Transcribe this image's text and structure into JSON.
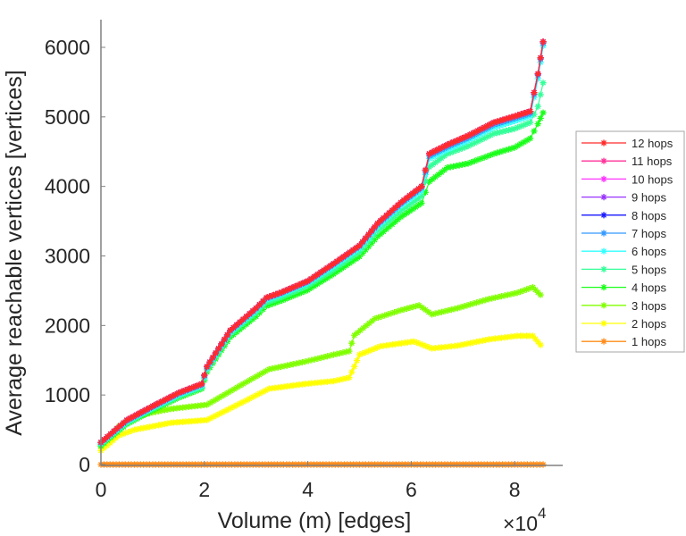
{
  "chart_data": {
    "type": "line",
    "title": "",
    "xlabel": "Volume (m) [edges]",
    "ylabel": "Average reachable vertices [vertices]",
    "x_multiplier_label": "×10",
    "x_multiplier_exponent": "4",
    "x_scale": 10000,
    "xlim": [
      0,
      9
    ],
    "ylim": [
      0,
      6000
    ],
    "xticks": [
      0,
      2,
      4,
      6,
      8
    ],
    "xtick_labels": [
      "0",
      "2",
      "4",
      "6",
      "8"
    ],
    "yticks": [
      0,
      1000,
      2000,
      3000,
      4000,
      5000,
      6000
    ],
    "ytick_labels": [
      "0",
      "1000",
      "2000",
      "3000",
      "4000",
      "5000",
      "6000"
    ],
    "grid": false,
    "legend_position": "outside-right",
    "marker": "asterisk",
    "series": [
      {
        "name": "12 hops",
        "color": "#ff2a2a",
        "x": [
          0,
          0.5,
          1,
          1.5,
          1.95,
          2.05,
          2.5,
          3,
          3.2,
          3.5,
          4,
          4.5,
          5,
          5.35,
          5.8,
          6.2,
          6.35,
          6.7,
          7.1,
          7.6,
          8.0,
          8.3,
          8.45,
          8.55
        ],
        "y": [
          320,
          640,
          840,
          1030,
          1160,
          1410,
          1930,
          2250,
          2400,
          2480,
          2640,
          2890,
          3150,
          3470,
          3770,
          4000,
          4470,
          4600,
          4730,
          4920,
          5010,
          5080,
          5620,
          6080
        ]
      },
      {
        "name": "11 hops",
        "color": "#ff3399",
        "x": [
          0,
          0.5,
          1,
          1.5,
          1.95,
          2.05,
          2.5,
          3,
          3.2,
          3.5,
          4,
          4.5,
          5,
          5.35,
          5.8,
          6.2,
          6.35,
          6.7,
          7.1,
          7.6,
          8.0,
          8.3,
          8.45,
          8.55
        ],
        "y": [
          320,
          640,
          840,
          1030,
          1160,
          1410,
          1930,
          2250,
          2400,
          2480,
          2640,
          2890,
          3150,
          3470,
          3770,
          4000,
          4470,
          4600,
          4730,
          4920,
          5010,
          5080,
          5620,
          6080
        ]
      },
      {
        "name": "10 hops",
        "color": "#ff33ff",
        "x": [
          0,
          0.5,
          1,
          1.5,
          1.95,
          2.05,
          2.5,
          3,
          3.2,
          3.5,
          4,
          4.5,
          5,
          5.35,
          5.8,
          6.2,
          6.35,
          6.7,
          7.1,
          7.6,
          8.0,
          8.3,
          8.45,
          8.55
        ],
        "y": [
          320,
          640,
          840,
          1030,
          1160,
          1410,
          1930,
          2250,
          2400,
          2480,
          2640,
          2890,
          3150,
          3470,
          3770,
          4000,
          4470,
          4600,
          4730,
          4920,
          5010,
          5080,
          5620,
          6080
        ]
      },
      {
        "name": "9 hops",
        "color": "#9933ff",
        "x": [
          0,
          0.5,
          1,
          1.5,
          1.95,
          2.05,
          2.5,
          3,
          3.2,
          3.5,
          4,
          4.5,
          5,
          5.35,
          5.8,
          6.2,
          6.35,
          6.7,
          7.1,
          7.6,
          8.0,
          8.3,
          8.45,
          8.55
        ],
        "y": [
          320,
          640,
          840,
          1030,
          1160,
          1410,
          1930,
          2250,
          2400,
          2480,
          2640,
          2890,
          3150,
          3470,
          3770,
          4000,
          4470,
          4600,
          4730,
          4920,
          5010,
          5080,
          5620,
          6080
        ]
      },
      {
        "name": "8 hops",
        "color": "#1a1aff",
        "x": [
          0,
          0.5,
          1,
          1.5,
          1.95,
          2.05,
          2.5,
          3,
          3.2,
          3.5,
          4,
          4.5,
          5,
          5.35,
          5.8,
          6.2,
          6.35,
          6.7,
          7.1,
          7.6,
          8.0,
          8.3,
          8.45,
          8.55
        ],
        "y": [
          320,
          640,
          840,
          1030,
          1160,
          1410,
          1930,
          2250,
          2400,
          2480,
          2640,
          2890,
          3150,
          3470,
          3770,
          4000,
          4470,
          4600,
          4730,
          4920,
          5010,
          5080,
          5620,
          6080
        ]
      },
      {
        "name": "7 hops",
        "color": "#3399ff",
        "x": [
          0,
          0.5,
          1,
          1.5,
          1.95,
          2.05,
          2.5,
          3,
          3.2,
          3.5,
          4,
          4.5,
          5,
          5.35,
          5.8,
          6.2,
          6.35,
          6.7,
          7.1,
          7.6,
          8.0,
          8.3,
          8.45,
          8.55
        ],
        "y": [
          315,
          630,
          830,
          1020,
          1150,
          1400,
          1920,
          2240,
          2390,
          2470,
          2630,
          2880,
          3140,
          3450,
          3750,
          3980,
          4440,
          4570,
          4700,
          4890,
          4980,
          5050,
          5600,
          6060
        ]
      },
      {
        "name": "6 hops",
        "color": "#33ffff",
        "x": [
          0,
          0.5,
          1,
          1.5,
          1.95,
          2.05,
          2.5,
          3,
          3.2,
          3.5,
          4,
          4.5,
          5,
          5.35,
          5.8,
          6.2,
          6.35,
          6.7,
          7.1,
          7.6,
          8.0,
          8.3,
          8.45,
          8.55
        ],
        "y": [
          305,
          615,
          815,
          1000,
          1130,
          1380,
          1900,
          2220,
          2370,
          2450,
          2610,
          2850,
          3110,
          3420,
          3720,
          3940,
          4400,
          4530,
          4660,
          4850,
          4940,
          5010,
          5550,
          6020
        ]
      },
      {
        "name": "5 hops",
        "color": "#33ff99",
        "x": [
          0,
          0.5,
          1,
          1.5,
          1.95,
          2.05,
          2.5,
          3,
          3.2,
          3.5,
          4,
          4.5,
          5,
          5.35,
          5.8,
          6.2,
          6.35,
          6.7,
          7.1,
          7.6,
          8.0,
          8.3,
          8.45,
          8.55
        ],
        "y": [
          290,
          600,
          800,
          980,
          1110,
          1360,
          1870,
          2180,
          2330,
          2410,
          2570,
          2800,
          3060,
          3360,
          3650,
          3860,
          4280,
          4470,
          4580,
          4760,
          4830,
          4920,
          5150,
          5490
        ]
      },
      {
        "name": "4 hops",
        "color": "#1aff1a",
        "x": [
          0,
          0.5,
          1,
          1.5,
          1.95,
          2.05,
          2.5,
          3,
          3.2,
          3.5,
          4,
          4.5,
          5,
          5.35,
          5.8,
          6.2,
          6.35,
          6.7,
          7.1,
          7.6,
          8.0,
          8.3,
          8.45,
          8.55
        ],
        "y": [
          270,
          580,
          780,
          960,
          1090,
          1330,
          1830,
          2130,
          2280,
          2360,
          2510,
          2740,
          2990,
          3280,
          3560,
          3760,
          4070,
          4270,
          4330,
          4470,
          4560,
          4690,
          4900,
          5060
        ]
      },
      {
        "name": "3 hops",
        "color": "#80ff00",
        "x": [
          0,
          0.35,
          0.65,
          1.0,
          1.35,
          1.7,
          2.05,
          2.75,
          3.25,
          3.95,
          4.5,
          4.8,
          4.9,
          5.3,
          5.8,
          6.15,
          6.4,
          6.9,
          7.5,
          8.05,
          8.35,
          8.5
        ],
        "y": [
          260,
          550,
          680,
          750,
          800,
          830,
          860,
          1160,
          1370,
          1480,
          1580,
          1630,
          1860,
          2100,
          2220,
          2290,
          2160,
          2250,
          2380,
          2470,
          2550,
          2440
        ]
      },
      {
        "name": "2 hops",
        "color": "#ffff00",
        "x": [
          0,
          0.35,
          0.65,
          1.0,
          1.35,
          1.7,
          2.05,
          2.75,
          3.25,
          3.95,
          4.5,
          4.8,
          4.9,
          5.0,
          5.4,
          6.05,
          6.4,
          6.9,
          7.5,
          8.05,
          8.35,
          8.5
        ],
        "y": [
          200,
          420,
          500,
          550,
          600,
          620,
          640,
          900,
          1090,
          1160,
          1200,
          1250,
          1410,
          1580,
          1700,
          1770,
          1670,
          1710,
          1800,
          1850,
          1850,
          1720
        ]
      },
      {
        "name": "1 hops",
        "color": "#ff8c1a",
        "x": [
          0,
          1,
          2,
          3,
          4,
          5,
          6,
          7,
          8,
          8.55
        ],
        "y": [
          0,
          0,
          0,
          0,
          0,
          0,
          0,
          0,
          0,
          0
        ]
      }
    ]
  }
}
